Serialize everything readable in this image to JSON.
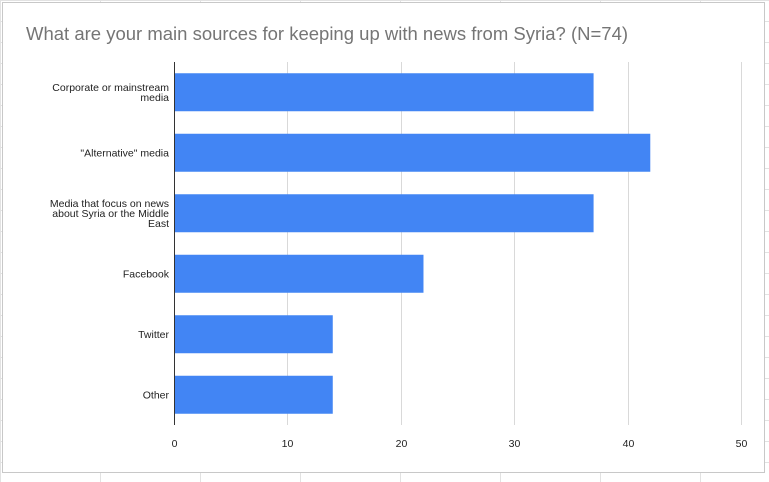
{
  "chart_data": {
    "type": "bar",
    "orientation": "horizontal",
    "title": "What are your main sources for keeping up with news from Syria? (N=74)",
    "categories": [
      "Corporate or mainstream media",
      "\"Alternative\" media",
      "Media that focus on news about Syria or the Middle East",
      "Facebook",
      "Twitter",
      "Other"
    ],
    "category_lines": [
      [
        "Corporate or mainstream",
        "media"
      ],
      [
        "\"Alternative\" media"
      ],
      [
        "Media that focus on news",
        "about Syria or the Middle",
        "East"
      ],
      [
        "Facebook"
      ],
      [
        "Twitter"
      ],
      [
        "Other"
      ]
    ],
    "values": [
      37,
      42,
      37,
      22,
      14,
      14
    ],
    "xlim": [
      0,
      50
    ],
    "xticks": [
      "0",
      "10",
      "20",
      "30",
      "40",
      "50"
    ],
    "grid": true,
    "legend": "none",
    "bar_color": "#4285f4"
  }
}
